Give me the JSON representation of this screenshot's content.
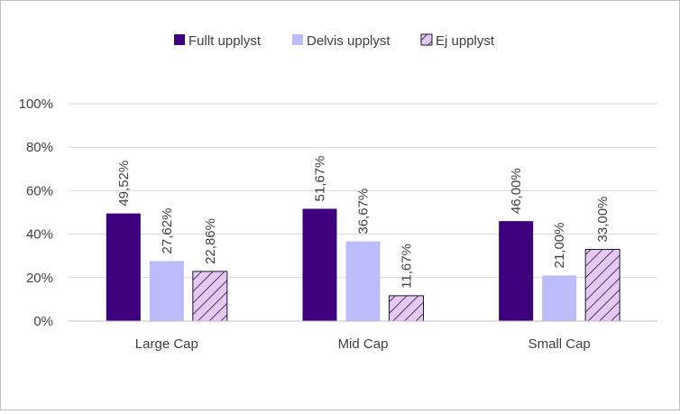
{
  "colors": {
    "fullt": "#3f007d",
    "delvis": "#bcbcfb",
    "ej_fill": "#e6c8f5",
    "ej_hatch": "#1a1a2e",
    "grid": "#d9d9d9",
    "axis": "#bfbfbf"
  },
  "chart_data": {
    "type": "bar",
    "categories": [
      "Large Cap",
      "Mid Cap",
      "Small Cap"
    ],
    "series": [
      {
        "name": "Fullt upplyst",
        "values": [
          49.52,
          51.67,
          46.0
        ],
        "labels": [
          "49,52%",
          "51,67%",
          "46,00%"
        ],
        "pattern": "solid"
      },
      {
        "name": "Delvis upplyst",
        "values": [
          27.62,
          36.67,
          21.0
        ],
        "labels": [
          "27,62%",
          "36,67%",
          "21,00%"
        ],
        "pattern": "solid"
      },
      {
        "name": "Ej upplyst",
        "values": [
          22.86,
          11.67,
          33.0
        ],
        "labels": [
          "22,86%",
          "11,67%",
          "33,00%"
        ],
        "pattern": "hatched"
      }
    ],
    "y_ticks": [
      0,
      20,
      40,
      60,
      80,
      100
    ],
    "y_tick_labels": [
      "0%",
      "20%",
      "40%",
      "60%",
      "80%",
      "100%"
    ],
    "ylim": [
      0,
      100
    ],
    "grid": true,
    "legend_position": "top-center"
  }
}
